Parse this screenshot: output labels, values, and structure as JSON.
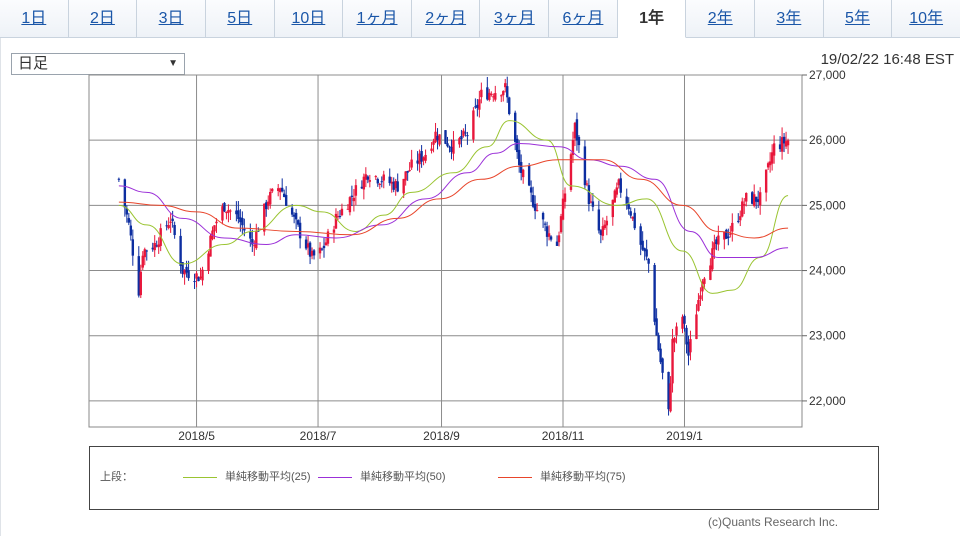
{
  "tabs": [
    {
      "label": "1日",
      "active": false
    },
    {
      "label": "2日",
      "active": false
    },
    {
      "label": "3日",
      "active": false
    },
    {
      "label": "5日",
      "active": false
    },
    {
      "label": "10日",
      "active": false
    },
    {
      "label": "1ヶ月",
      "active": false
    },
    {
      "label": "2ヶ月",
      "active": false
    },
    {
      "label": "3ヶ月",
      "active": false
    },
    {
      "label": "6ヶ月",
      "active": false
    },
    {
      "label": "1年",
      "active": true
    },
    {
      "label": "2年",
      "active": false
    },
    {
      "label": "3年",
      "active": false
    },
    {
      "label": "5年",
      "active": false
    },
    {
      "label": "10年",
      "active": false
    }
  ],
  "period_select": {
    "value": "日足"
  },
  "timestamp": "19/02/22 16:48 EST",
  "legend": {
    "label": "上段："
  },
  "copyright": "(c)Quants Research Inc.",
  "colors": {
    "up": "#e8173b",
    "down": "#0d2ea0",
    "ma25": "#9ac431",
    "ma50": "#9b30d8",
    "ma75": "#e8452b",
    "grid": "#8c8c8c",
    "tab_link": "#1a56a8"
  },
  "chart_data": {
    "type": "candlestick",
    "x_tick_labels": [
      "2018/5",
      "2018/7",
      "2018/9",
      "2018/11",
      "2019/1"
    ],
    "y_ticks": [
      22000,
      23000,
      24000,
      25000,
      26000,
      27000
    ],
    "ylim": [
      21600,
      27000
    ],
    "grid": true,
    "legend_position": "bottom",
    "close_anchors": [
      [
        "2018-03-23",
        25400
      ],
      [
        "2018-03-28",
        24700
      ],
      [
        "2018-04-02",
        23700
      ],
      [
        "2018-04-04",
        24300
      ],
      [
        "2018-04-10",
        24400
      ],
      [
        "2018-04-18",
        24800
      ],
      [
        "2018-04-24",
        24000
      ],
      [
        "2018-05-03",
        23900
      ],
      [
        "2018-05-10",
        24700
      ],
      [
        "2018-05-15",
        25000
      ],
      [
        "2018-05-22",
        24800
      ],
      [
        "2018-05-29",
        24400
      ],
      [
        "2018-06-06",
        25100
      ],
      [
        "2018-06-12",
        25300
      ],
      [
        "2018-06-20",
        24700
      ],
      [
        "2018-06-28",
        24200
      ],
      [
        "2018-07-03",
        24300
      ],
      [
        "2018-07-10",
        24800
      ],
      [
        "2018-07-17",
        25100
      ],
      [
        "2018-07-26",
        25500
      ],
      [
        "2018-08-02",
        25400
      ],
      [
        "2018-08-10",
        25300
      ],
      [
        "2018-08-17",
        25600
      ],
      [
        "2018-08-24",
        25800
      ],
      [
        "2018-08-29",
        26100
      ],
      [
        "2018-09-07",
        25900
      ],
      [
        "2018-09-14",
        26100
      ],
      [
        "2018-09-21",
        26700
      ],
      [
        "2018-10-03",
        26800
      ],
      [
        "2018-10-10",
        25600
      ],
      [
        "2018-10-15",
        25200
      ],
      [
        "2018-10-24",
        24600
      ],
      [
        "2018-10-29",
        24400
      ],
      [
        "2018-11-07",
        26200
      ],
      [
        "2018-11-14",
        25100
      ],
      [
        "2018-11-20",
        24500
      ],
      [
        "2018-11-29",
        25300
      ],
      [
        "2018-12-04",
        25000
      ],
      [
        "2018-12-10",
        24400
      ],
      [
        "2018-12-14",
        24100
      ],
      [
        "2018-12-18",
        23000
      ],
      [
        "2018-12-24",
        21800
      ],
      [
        "2018-12-26",
        22900
      ],
      [
        "2018-12-31",
        23300
      ],
      [
        "2019-01-03",
        22700
      ],
      [
        "2019-01-10",
        23900
      ],
      [
        "2019-01-17",
        24400
      ],
      [
        "2019-01-24",
        24600
      ],
      [
        "2019-02-01",
        25100
      ],
      [
        "2019-02-08",
        25100
      ],
      [
        "2019-02-15",
        25900
      ],
      [
        "2019-02-22",
        26000
      ]
    ],
    "series": [
      {
        "name": "単純移動平均(25)",
        "anchors": [
          [
            "2018-03-23",
            25000
          ],
          [
            "2018-04-06",
            24700
          ],
          [
            "2018-04-24",
            24100
          ],
          [
            "2018-05-15",
            24400
          ],
          [
            "2018-05-29",
            24600
          ],
          [
            "2018-06-20",
            25000
          ],
          [
            "2018-07-03",
            24900
          ],
          [
            "2018-07-20",
            24600
          ],
          [
            "2018-08-03",
            24850
          ],
          [
            "2018-08-17",
            25200
          ],
          [
            "2018-09-07",
            25500
          ],
          [
            "2018-09-24",
            25900
          ],
          [
            "2018-10-05",
            26300
          ],
          [
            "2018-10-24",
            26000
          ],
          [
            "2018-11-05",
            25300
          ],
          [
            "2018-11-28",
            25000
          ],
          [
            "2018-12-13",
            25100
          ],
          [
            "2018-12-31",
            24300
          ],
          [
            "2019-01-15",
            23650
          ],
          [
            "2019-01-25",
            23700
          ],
          [
            "2019-02-08",
            24200
          ],
          [
            "2019-02-22",
            25150
          ]
        ]
      },
      {
        "name": "単純移動平均(50)",
        "anchors": [
          [
            "2018-03-23",
            25300
          ],
          [
            "2018-04-06",
            25200
          ],
          [
            "2018-04-24",
            24800
          ],
          [
            "2018-05-15",
            24500
          ],
          [
            "2018-06-05",
            24400
          ],
          [
            "2018-06-20",
            24550
          ],
          [
            "2018-07-10",
            24500
          ],
          [
            "2018-08-02",
            24700
          ],
          [
            "2018-08-24",
            25100
          ],
          [
            "2018-09-14",
            25500
          ],
          [
            "2018-09-28",
            25800
          ],
          [
            "2018-10-10",
            25950
          ],
          [
            "2018-10-30",
            25900
          ],
          [
            "2018-11-14",
            25700
          ],
          [
            "2018-11-30",
            25600
          ],
          [
            "2018-12-17",
            25400
          ],
          [
            "2019-01-04",
            24600
          ],
          [
            "2019-01-18",
            24200
          ],
          [
            "2019-02-05",
            24200
          ],
          [
            "2019-02-22",
            24350
          ]
        ]
      },
      {
        "name": "単純移動平均(75)",
        "anchors": [
          [
            "2018-03-23",
            25050
          ],
          [
            "2018-04-13",
            25000
          ],
          [
            "2018-05-01",
            24900
          ],
          [
            "2018-05-22",
            24650
          ],
          [
            "2018-06-20",
            24600
          ],
          [
            "2018-07-18",
            24550
          ],
          [
            "2018-08-10",
            24800
          ],
          [
            "2018-08-31",
            25100
          ],
          [
            "2018-09-21",
            25400
          ],
          [
            "2018-10-10",
            25600
          ],
          [
            "2018-10-30",
            25700
          ],
          [
            "2018-11-21",
            25700
          ],
          [
            "2018-12-10",
            25400
          ],
          [
            "2018-12-31",
            25000
          ],
          [
            "2019-01-18",
            24600
          ],
          [
            "2019-02-05",
            24500
          ],
          [
            "2019-02-22",
            24650
          ]
        ]
      }
    ]
  }
}
